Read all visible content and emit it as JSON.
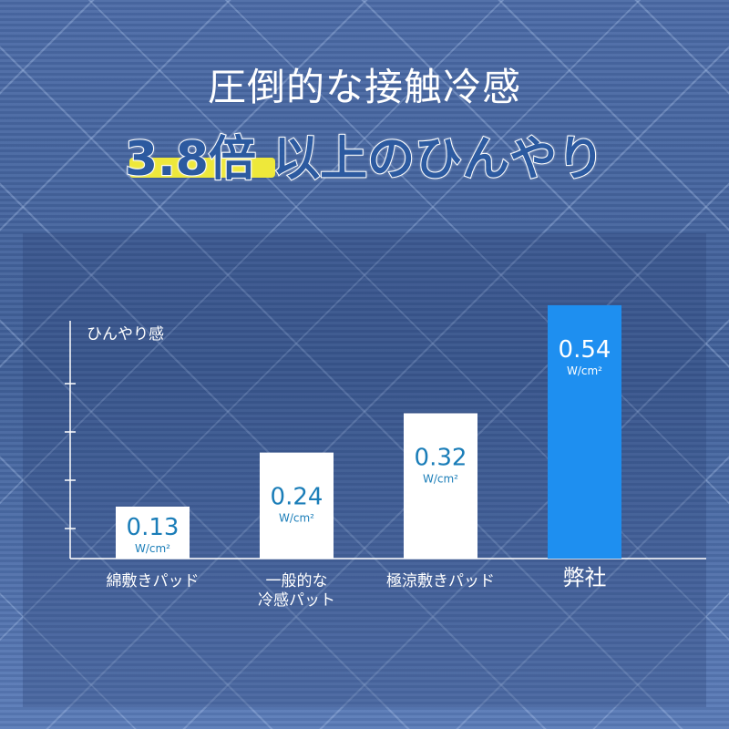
{
  "header": {
    "title": "圧倒的な接触冷感",
    "headline_highlight": "3.8倍",
    "headline_rest": " 以上のひんやり"
  },
  "chart_data": {
    "type": "bar",
    "ylabel": "ひんやり感",
    "categories": [
      "綿敷きパッド",
      "一般的な\n冷感パット",
      "極涼敷きパッド",
      "弊社"
    ],
    "values": [
      0.13,
      0.24,
      0.32,
      0.54
    ],
    "value_labels": [
      "0.13",
      "0.24",
      "0.32",
      "0.54"
    ],
    "unit": "W/cm²",
    "bar_colors": [
      "#ffffff",
      "#ffffff",
      "#ffffff",
      "#1e8ff0"
    ],
    "label_colors": [
      "#1a7db8",
      "#1a7db8",
      "#1a7db8",
      "#ffffff"
    ],
    "grid": false
  }
}
